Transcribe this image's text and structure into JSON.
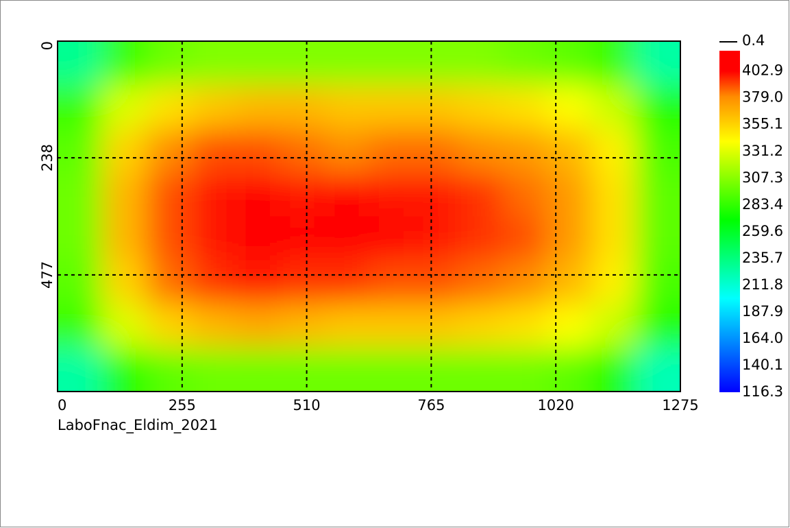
{
  "chart_data": {
    "type": "heatmap",
    "caption": "LaboFnac_Eldim_2021",
    "xlim": [
      0,
      1275
    ],
    "xticks": [
      0,
      255,
      510,
      765,
      1020,
      1275
    ],
    "ylim": [
      0,
      715
    ],
    "yticks": [
      0,
      238,
      477
    ],
    "grid": true,
    "values": [
      [
        230,
        285,
        300,
        305,
        305,
        305,
        305,
        305,
        305,
        305,
        300,
        295,
        285,
        225
      ],
      [
        285,
        330,
        350,
        360,
        365,
        365,
        360,
        360,
        360,
        355,
        350,
        340,
        325,
        280
      ],
      [
        295,
        355,
        380,
        390,
        390,
        385,
        380,
        385,
        385,
        380,
        375,
        365,
        345,
        290
      ],
      [
        300,
        365,
        390,
        400,
        405,
        400,
        405,
        400,
        400,
        395,
        385,
        375,
        350,
        295
      ],
      [
        300,
        365,
        390,
        400,
        405,
        405,
        405,
        405,
        400,
        395,
        390,
        375,
        350,
        295
      ],
      [
        295,
        355,
        385,
        395,
        400,
        395,
        395,
        390,
        390,
        385,
        380,
        365,
        345,
        290
      ],
      [
        285,
        330,
        355,
        365,
        370,
        365,
        360,
        360,
        360,
        355,
        350,
        340,
        325,
        280
      ],
      [
        225,
        280,
        295,
        300,
        300,
        300,
        300,
        300,
        300,
        300,
        300,
        295,
        280,
        220
      ]
    ],
    "colorscale": [
      [
        116.3,
        "#0000ff"
      ],
      [
        200,
        "#00ffff"
      ],
      [
        270,
        "#00ff00"
      ],
      [
        340,
        "#ffff00"
      ],
      [
        380,
        "#ff8c00"
      ],
      [
        402.9,
        "#ff0000"
      ]
    ],
    "colorbar": {
      "lim": [
        116.3,
        421
      ],
      "marker": 0.4,
      "ticks": [
        402.9,
        {
          "value": 379,
          "label": "379.0"
        },
        355.1,
        331.2,
        307.3,
        283.4,
        259.6,
        235.7,
        211.8,
        187.9,
        {
          "value": 164,
          "label": "164.0"
        },
        140.1,
        116.3
      ]
    }
  }
}
